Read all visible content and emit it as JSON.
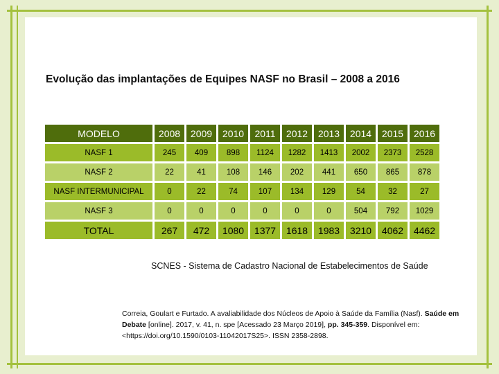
{
  "title": "Evolução das implantações de Equipes NASF no Brasil – 2008 a 2016",
  "table": {
    "header": [
      "MODELO",
      "2008",
      "2009",
      "2010",
      "2011",
      "2012",
      "2013",
      "2014",
      "2015",
      "2016"
    ],
    "rows": [
      {
        "label": "NASF 1",
        "values": [
          "245",
          "409",
          "898",
          "1124",
          "1282",
          "1413",
          "2002",
          "2373",
          "2528"
        ]
      },
      {
        "label": "NASF 2",
        "values": [
          "22",
          "41",
          "108",
          "146",
          "202",
          "441",
          "650",
          "865",
          "878"
        ]
      },
      {
        "label": "NASF INTERMUNICIPAL",
        "values": [
          "0",
          "22",
          "74",
          "107",
          "134",
          "129",
          "54",
          "32",
          "27"
        ]
      },
      {
        "label": "NASF 3",
        "values": [
          "0",
          "0",
          "0",
          "0",
          "0",
          "0",
          "504",
          "792",
          "1029"
        ]
      },
      {
        "label": "TOTAL",
        "values": [
          "267",
          "472",
          "1080",
          "1377",
          "1618",
          "1983",
          "3210",
          "4062",
          "4462"
        ]
      }
    ]
  },
  "source": "SCNES - Sistema de Cadastro Nacional de Estabelecimentos de Saúde",
  "citation": {
    "part1": "Correia, Goulart e Furtado. A avaliabilidade dos Núcleos de Apoio à Saúde da Família (Nasf).",
    "journal": "Saúde em Debate",
    "part2": " [online]. 2017, v. 41, n. spe [Acessado 23 Março 2019], ",
    "pages": "pp. 345-359",
    "part3": ". Disponível em: <https://doi.org/10.1590/0103-11042017S25>. ISSN 2358-2898."
  },
  "colors": {
    "background": "#e8efcf",
    "frame": "#a4c13e",
    "header_cell": "#4f6d0c",
    "cell": "#9bbb29",
    "cell_alt": "#b9d168"
  }
}
